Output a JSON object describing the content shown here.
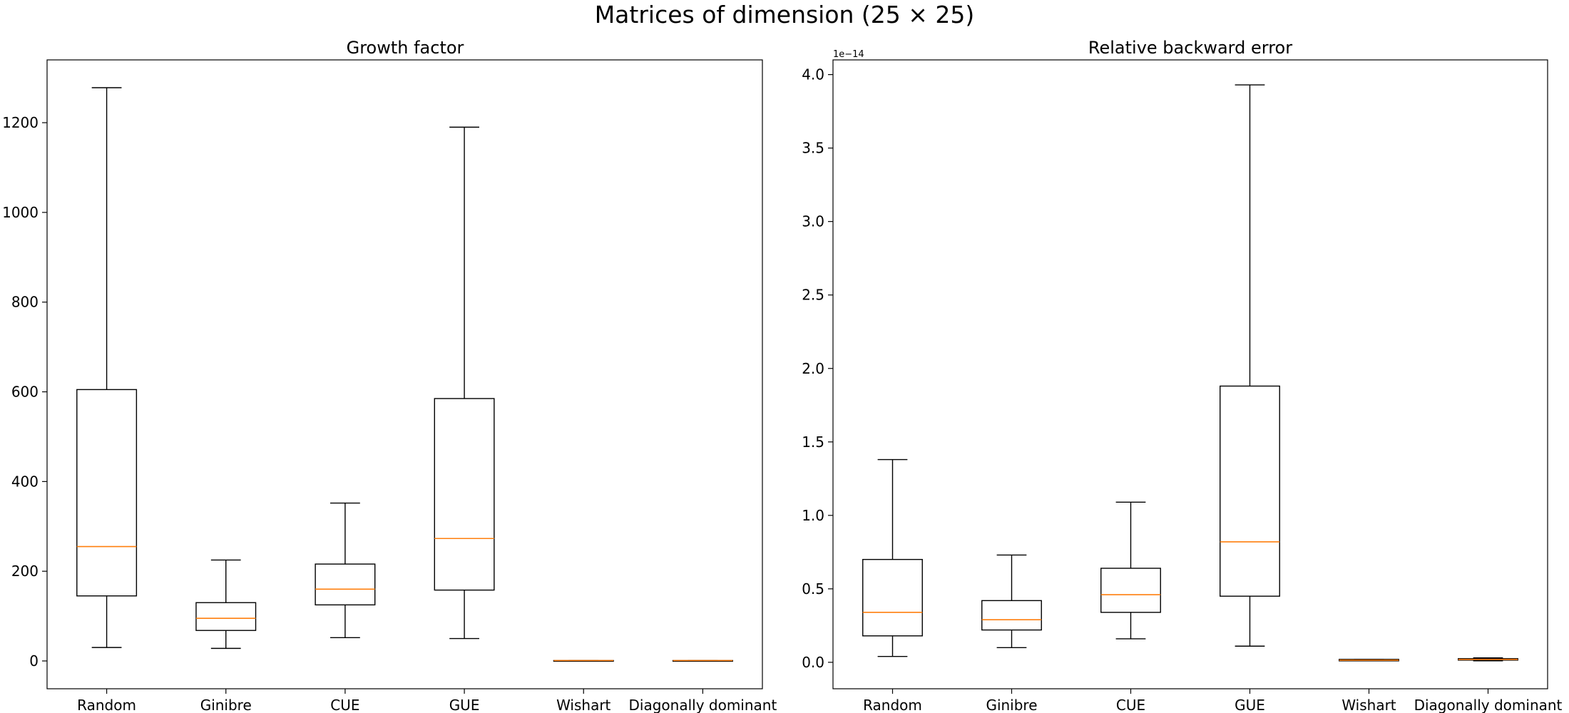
{
  "figure": {
    "title": "Matrices of dimension (25 × 25)"
  },
  "chart_data": [
    {
      "type": "box",
      "title": "Growth factor",
      "xlabel": "",
      "ylabel": "",
      "categories": [
        "Random",
        "Ginibre",
        "CUE",
        "GUE",
        "Wishart",
        "Diagonally dominant"
      ],
      "ylim": [
        -62,
        1340
      ],
      "yticks": [
        0,
        200,
        400,
        600,
        800,
        1000,
        1200
      ],
      "ytick_labels": [
        "0",
        "200",
        "400",
        "600",
        "800",
        "1000",
        "1200"
      ],
      "offset_text": "",
      "boxes": [
        {
          "whisker_low": 30,
          "q1": 145,
          "median": 255,
          "q3": 605,
          "whisker_high": 1278
        },
        {
          "whisker_low": 28,
          "q1": 68,
          "median": 95,
          "q3": 130,
          "whisker_high": 225
        },
        {
          "whisker_low": 52,
          "q1": 125,
          "median": 160,
          "q3": 216,
          "whisker_high": 352
        },
        {
          "whisker_low": 50,
          "q1": 158,
          "median": 273,
          "q3": 585,
          "whisker_high": 1190
        },
        {
          "whisker_low": 1,
          "q1": 1,
          "median": 1,
          "q3": 1,
          "whisker_high": 1
        },
        {
          "whisker_low": 1,
          "q1": 1,
          "median": 1,
          "q3": 1,
          "whisker_high": 1
        }
      ],
      "grid": false,
      "colors": {
        "box": "#000000",
        "median": "#ff7f0e"
      }
    },
    {
      "type": "box",
      "title": "Relative backward error",
      "xlabel": "",
      "ylabel": "",
      "categories": [
        "Random",
        "Ginibre",
        "CUE",
        "GUE",
        "Wishart",
        "Diagonally dominant"
      ],
      "ylim": [
        -0.18,
        4.1
      ],
      "yticks": [
        0.0,
        0.5,
        1.0,
        1.5,
        2.0,
        2.5,
        3.0,
        3.5,
        4.0
      ],
      "ytick_labels": [
        "0.0",
        "0.5",
        "1.0",
        "1.5",
        "2.0",
        "2.5",
        "3.0",
        "3.5",
        "4.0"
      ],
      "offset_text": "1e−14",
      "boxes": [
        {
          "whisker_low": 0.04,
          "q1": 0.18,
          "median": 0.34,
          "q3": 0.7,
          "whisker_high": 1.38
        },
        {
          "whisker_low": 0.1,
          "q1": 0.22,
          "median": 0.29,
          "q3": 0.42,
          "whisker_high": 0.73
        },
        {
          "whisker_low": 0.16,
          "q1": 0.34,
          "median": 0.46,
          "q3": 0.64,
          "whisker_high": 1.09
        },
        {
          "whisker_low": 0.11,
          "q1": 0.45,
          "median": 0.82,
          "q3": 1.88,
          "whisker_high": 3.93
        },
        {
          "whisker_low": 0.01,
          "q1": 0.01,
          "median": 0.015,
          "q3": 0.02,
          "whisker_high": 0.02
        },
        {
          "whisker_low": 0.01,
          "q1": 0.015,
          "median": 0.02,
          "q3": 0.025,
          "whisker_high": 0.03
        }
      ],
      "grid": false,
      "colors": {
        "box": "#000000",
        "median": "#ff7f0e"
      }
    }
  ]
}
